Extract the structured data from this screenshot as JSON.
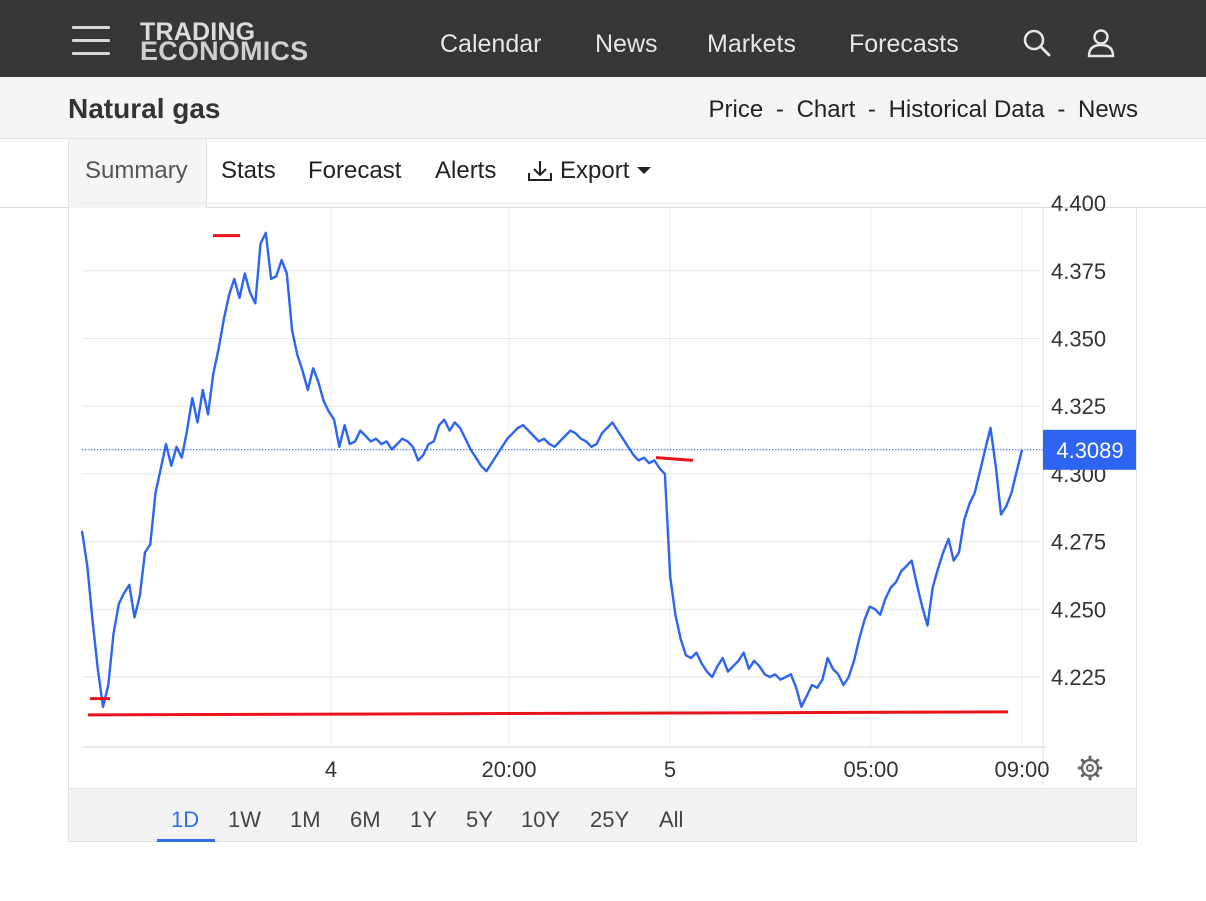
{
  "brand": {
    "line1": "TRADING",
    "line2": "ECONOMICS"
  },
  "nav": {
    "items": [
      "Calendar",
      "News",
      "Markets",
      "Forecasts"
    ]
  },
  "page": {
    "title": "Natural gas"
  },
  "subnav": {
    "items": [
      "Price",
      "Chart",
      "Historical Data",
      "News"
    ],
    "separator": "-"
  },
  "tabs": {
    "active": "Summary",
    "items": [
      "Stats",
      "Forecast",
      "Alerts"
    ],
    "export_label": "Export"
  },
  "ranges": {
    "items": [
      "1D",
      "1W",
      "1M",
      "6M",
      "1Y",
      "5Y",
      "10Y",
      "25Y",
      "All"
    ],
    "selected": "1D"
  },
  "colors": {
    "accent": "#2f6fe0",
    "line": "#2e64f2",
    "marker": "#e8141c",
    "topbar": "#363636"
  },
  "icons": {
    "menu": "hamburger-icon",
    "search": "search-icon",
    "user": "user-icon",
    "export": "download-icon",
    "settings": "gear-icon"
  },
  "chart_data": {
    "type": "line",
    "ylim": [
      4.2,
      4.4
    ],
    "yticks": [
      "4.225",
      "4.250",
      "4.275",
      "4.300",
      "4.325",
      "4.350",
      "4.375",
      "4.400"
    ],
    "xticks": [
      "4",
      "20:00",
      "5",
      "05:00",
      "09:00"
    ],
    "current_value": "4.3089",
    "series": [
      {
        "values": [
          4.279,
          4.266,
          4.246,
          4.228,
          4.214,
          4.222,
          4.241,
          4.252,
          4.256,
          4.259,
          4.247,
          4.255,
          4.271,
          4.274,
          4.293,
          4.302,
          4.311,
          4.303,
          4.31,
          4.306,
          4.316,
          4.328,
          4.319,
          4.331,
          4.322,
          4.337,
          4.346,
          4.357,
          4.366,
          4.372,
          4.365,
          4.374,
          4.367,
          4.363,
          4.385,
          4.389,
          4.372,
          4.373,
          4.379,
          4.374,
          4.353,
          4.344,
          4.338,
          4.331,
          4.339,
          4.334,
          4.327,
          4.323,
          4.32,
          4.31,
          4.318,
          4.311,
          4.312,
          4.316,
          4.314,
          4.312,
          4.313,
          4.311,
          4.312,
          4.309,
          4.311,
          4.313,
          4.312,
          4.31,
          4.305,
          4.307,
          4.311,
          4.312,
          4.318,
          4.32,
          4.316,
          4.319,
          4.317,
          4.313,
          4.309,
          4.306,
          4.303,
          4.301,
          4.304,
          4.307,
          4.31,
          4.313,
          4.315,
          4.317,
          4.318,
          4.316,
          4.314,
          4.312,
          4.313,
          4.311,
          4.31,
          4.312,
          4.314,
          4.316,
          4.315,
          4.313,
          4.312,
          4.31,
          4.311,
          4.315,
          4.317,
          4.319,
          4.316,
          4.313,
          4.31,
          4.307,
          4.305,
          4.306,
          4.304,
          4.305,
          4.302,
          4.3,
          4.262,
          4.248,
          4.239,
          4.233,
          4.232,
          4.234,
          4.23,
          4.227,
          4.225,
          4.229,
          4.232,
          4.227,
          4.229,
          4.231,
          4.234,
          4.228,
          4.231,
          4.229,
          4.226,
          4.225,
          4.226,
          4.224,
          4.225,
          4.226,
          4.221,
          4.214,
          4.218,
          4.222,
          4.221,
          4.224,
          4.232,
          4.228,
          4.226,
          4.222,
          4.225,
          4.231,
          4.239,
          4.246,
          4.251,
          4.25,
          4.248,
          4.254,
          4.258,
          4.26,
          4.264,
          4.266,
          4.268,
          4.259,
          4.251,
          4.244,
          4.258,
          4.265,
          4.271,
          4.276,
          4.268,
          4.271,
          4.283,
          4.289,
          4.293,
          4.301,
          4.309,
          4.317,
          4.303,
          4.285,
          4.288,
          4.293,
          4.301,
          4.3089
        ],
        "markers": {
          "high": 4.388,
          "low": 4.217,
          "support": 4.211
        }
      }
    ]
  }
}
